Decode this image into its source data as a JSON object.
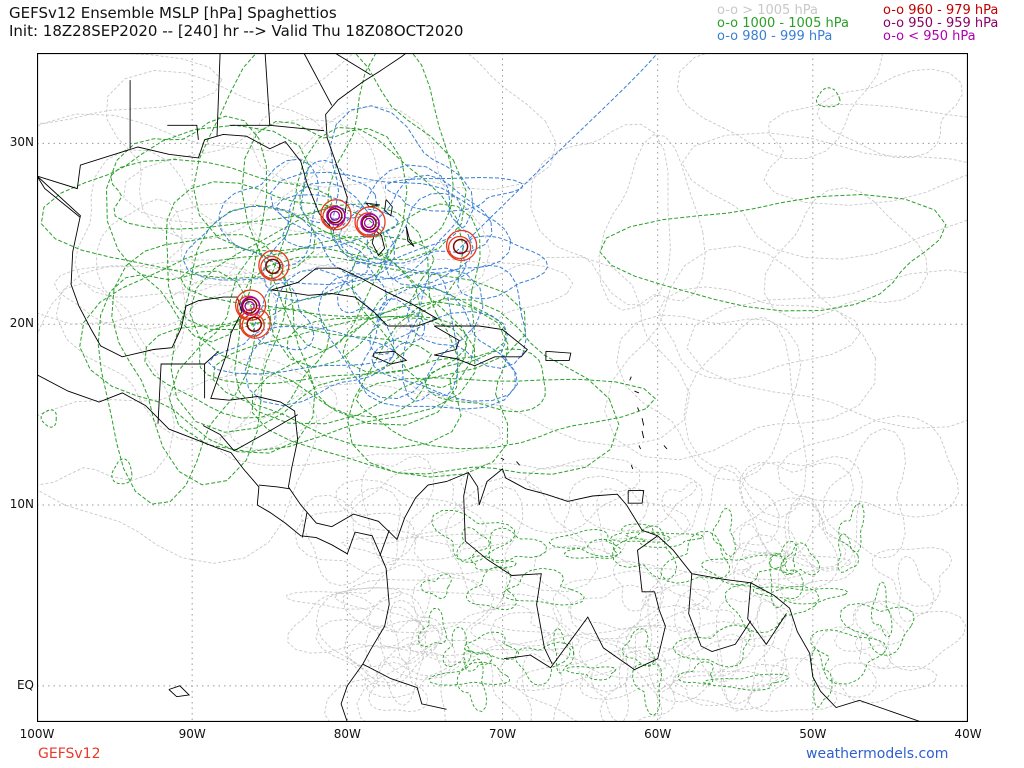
{
  "title": {
    "line1": "GEFSv12 Ensemble MSLP [hPa] Spaghettios",
    "line2": "Init: 18Z28SEP2020 -- [240] hr --> Valid Thu 18Z08OCT2020"
  },
  "legend": {
    "col1": [
      {
        "text": "o-o > 1005 hPa",
        "color": "#c8c8c8"
      },
      {
        "text": "o-o 1000 - 1005 hPa",
        "color": "#2aa02a"
      },
      {
        "text": "o-o 980 - 999 hPa",
        "color": "#3a7fd5"
      }
    ],
    "col2": [
      {
        "text": "o-o 960 - 979 hPa",
        "color": "#c00000"
      },
      {
        "text": "o-o 950 - 959 hPa",
        "color": "#8b0066"
      },
      {
        "text": "o-o < 950 hPa",
        "color": "#b000b0"
      }
    ]
  },
  "axes": {
    "lat_labels": [
      {
        "text": "30N",
        "lat": 30
      },
      {
        "text": "20N",
        "lat": 20
      },
      {
        "text": "10N",
        "lat": 10
      },
      {
        "text": "EQ",
        "lat": 0
      }
    ],
    "lon_labels": [
      {
        "text": "100W",
        "lon": -100
      },
      {
        "text": "90W",
        "lon": -90
      },
      {
        "text": "80W",
        "lon": -80
      },
      {
        "text": "70W",
        "lon": -70
      },
      {
        "text": "60W",
        "lon": -60
      },
      {
        "text": "50W",
        "lon": -50
      },
      {
        "text": "40W",
        "lon": -40
      }
    ],
    "lon_range": [
      -100,
      -40
    ],
    "lat_range": [
      -2,
      35
    ]
  },
  "footer": {
    "left": "GEFSv12",
    "left_color": "#e8392a",
    "right": "weathermodels.com",
    "right_color": "#2f5fd0"
  },
  "colors": {
    "grid": "#9a9a9a",
    "land_border": "#000000",
    "high": "#c8c8c8",
    "mid": "#2aa02a",
    "low": "#3a7fd5",
    "red": "#e8391c",
    "darkred": "#8b0000",
    "purple": "#a000a8"
  },
  "storm_centers": [
    {
      "name": "yucatan-cluster",
      "lon": -86.3,
      "lat": 21.0
    },
    {
      "name": "yucatan-south",
      "lon": -86.0,
      "lat": 20.0
    },
    {
      "name": "caribbean-nw",
      "lon": -84.8,
      "lat": 23.2
    },
    {
      "name": "south-florida",
      "lon": -80.8,
      "lat": 26.0
    },
    {
      "name": "bahamas-north",
      "lon": -78.6,
      "lat": 25.6
    },
    {
      "name": "atlantic-east",
      "lon": -72.7,
      "lat": 24.3
    }
  ]
}
